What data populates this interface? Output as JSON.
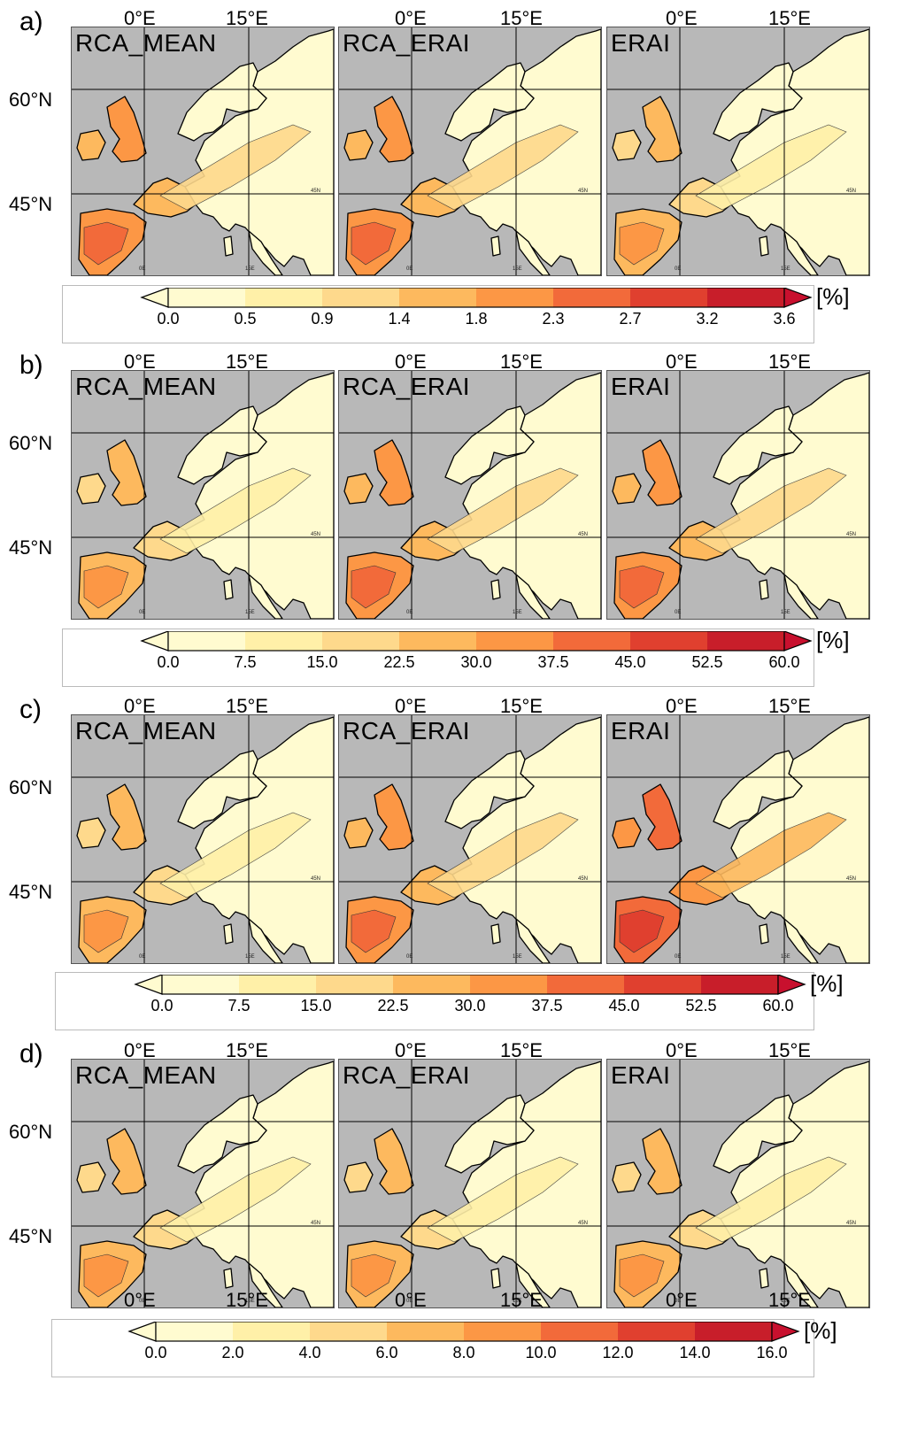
{
  "rows": [
    {
      "letter": "a)",
      "lat_labels": [
        "60°N",
        "45°N"
      ],
      "top_lon": [
        "0°E",
        "15°E",
        "0°E",
        "15°E",
        "0°E",
        "15°E"
      ],
      "bottom_lon": []
    },
    {
      "letter": "b)",
      "lat_labels": [
        "60°N",
        "45°N"
      ],
      "top_lon": [
        "0°E",
        "15°E",
        "0°E",
        "15°E",
        "0°E",
        "15°E"
      ],
      "bottom_lon": []
    },
    {
      "letter": "c)",
      "lat_labels": [
        "60°N",
        "45°N"
      ],
      "top_lon": [
        "0°E",
        "15°E",
        "0°E",
        "15°E",
        "0°E",
        "15°E"
      ],
      "bottom_lon": []
    },
    {
      "letter": "d)",
      "lat_labels": [
        "60°N",
        "45°N"
      ],
      "top_lon": [
        "0°E",
        "15°E",
        "0°E",
        "15°E",
        "0°E",
        "15°E"
      ],
      "bottom_lon": [
        "0°E",
        "15°E",
        "0°E",
        "15°E",
        "0°E",
        "15°E"
      ]
    }
  ],
  "panel_titles": [
    "RCA_MEAN",
    "RCA_ERAI",
    "ERAI"
  ],
  "map_tiny_labels": {
    "lat": "45N",
    "lon0": "0E",
    "lon15": "15E"
  },
  "colorbars": [
    {
      "unit": "[%]",
      "ticks": [
        "0.0",
        "0.5",
        "0.9",
        "1.4",
        "1.8",
        "2.3",
        "2.7",
        "3.2",
        "3.6"
      ]
    },
    {
      "unit": "[%]",
      "ticks": [
        "0.0",
        "7.5",
        "15.0",
        "22.5",
        "30.0",
        "37.5",
        "45.0",
        "52.5",
        "60.0"
      ]
    },
    {
      "unit": "[%]",
      "ticks": [
        "0.0",
        "7.5",
        "15.0",
        "22.5",
        "30.0",
        "37.5",
        "45.0",
        "52.5",
        "60.0"
      ]
    },
    {
      "unit": "[%]",
      "ticks": [
        "0.0",
        "2.0",
        "4.0",
        "6.0",
        "8.0",
        "10.0",
        "12.0",
        "14.0",
        "16.0"
      ]
    }
  ],
  "colors": {
    "sea": "#b8b8b8",
    "levels": [
      "#fffbd0",
      "#fff0a8",
      "#fed98c",
      "#fdb95e",
      "#fc9745",
      "#f26a3a",
      "#e0402f",
      "#c81e2a",
      "#9e0a26"
    ],
    "under": "#fffbd0",
    "over": "#c8102e"
  },
  "intensity": [
    [
      3,
      3,
      2
    ],
    [
      2,
      3,
      3
    ],
    [
      2,
      3,
      4
    ],
    [
      2,
      2,
      2
    ]
  ]
}
